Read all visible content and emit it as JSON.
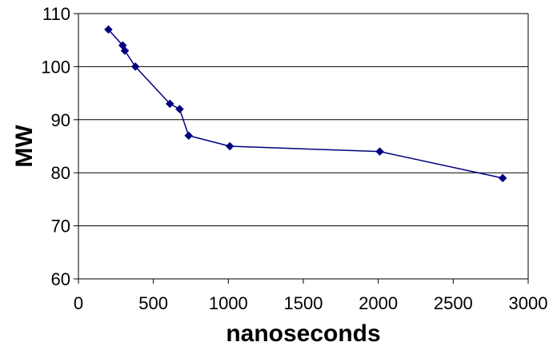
{
  "chart_data": {
    "type": "line",
    "title": "",
    "xlabel": "nanoseconds",
    "ylabel": "MW",
    "xlim": [
      0,
      3000
    ],
    "ylim": [
      60,
      110
    ],
    "x_ticks": [
      0,
      500,
      1000,
      1500,
      2000,
      2500,
      3000
    ],
    "y_ticks": [
      60,
      70,
      80,
      90,
      100,
      110
    ],
    "x_tick_labels": [
      "0",
      "500",
      "1000",
      "1500",
      "2000",
      "2500",
      "3000"
    ],
    "y_tick_labels": [
      "60",
      "70",
      "80",
      "90",
      "100",
      "110"
    ],
    "grid": {
      "horizontal": true,
      "vertical": false
    },
    "legend": "none",
    "series": [
      {
        "color": "#000080",
        "marker": "diamond",
        "x": [
          200,
          295,
          310,
          380,
          610,
          675,
          735,
          1010,
          2010,
          2830
        ],
        "y": [
          107,
          104,
          103,
          100,
          93,
          92,
          87,
          85,
          84,
          79
        ]
      }
    ]
  }
}
